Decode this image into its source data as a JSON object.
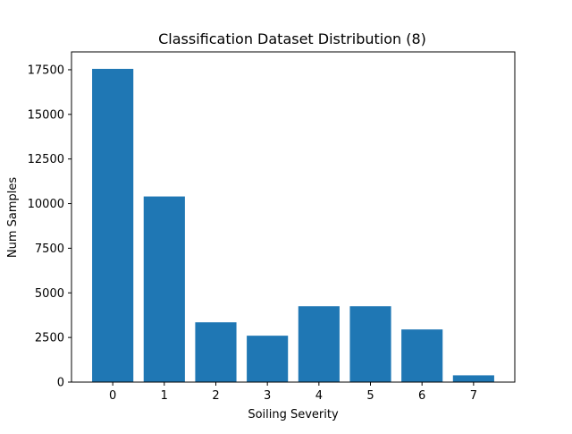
{
  "chart_data": {
    "type": "bar",
    "title": "Classification Dataset Distribution (8)",
    "xlabel": "Soiling Severity",
    "ylabel": "Num Samples",
    "categories": [
      "0",
      "1",
      "2",
      "3",
      "4",
      "5",
      "6",
      "7"
    ],
    "values": [
      17550,
      10400,
      3350,
      2600,
      4250,
      4250,
      2950,
      380
    ],
    "yticks": [
      0,
      2500,
      5000,
      7500,
      10000,
      12500,
      15000,
      17500
    ],
    "ylim": [
      0,
      18500
    ],
    "bar_color": "#1f77b4",
    "grid": false,
    "legend": "none"
  }
}
